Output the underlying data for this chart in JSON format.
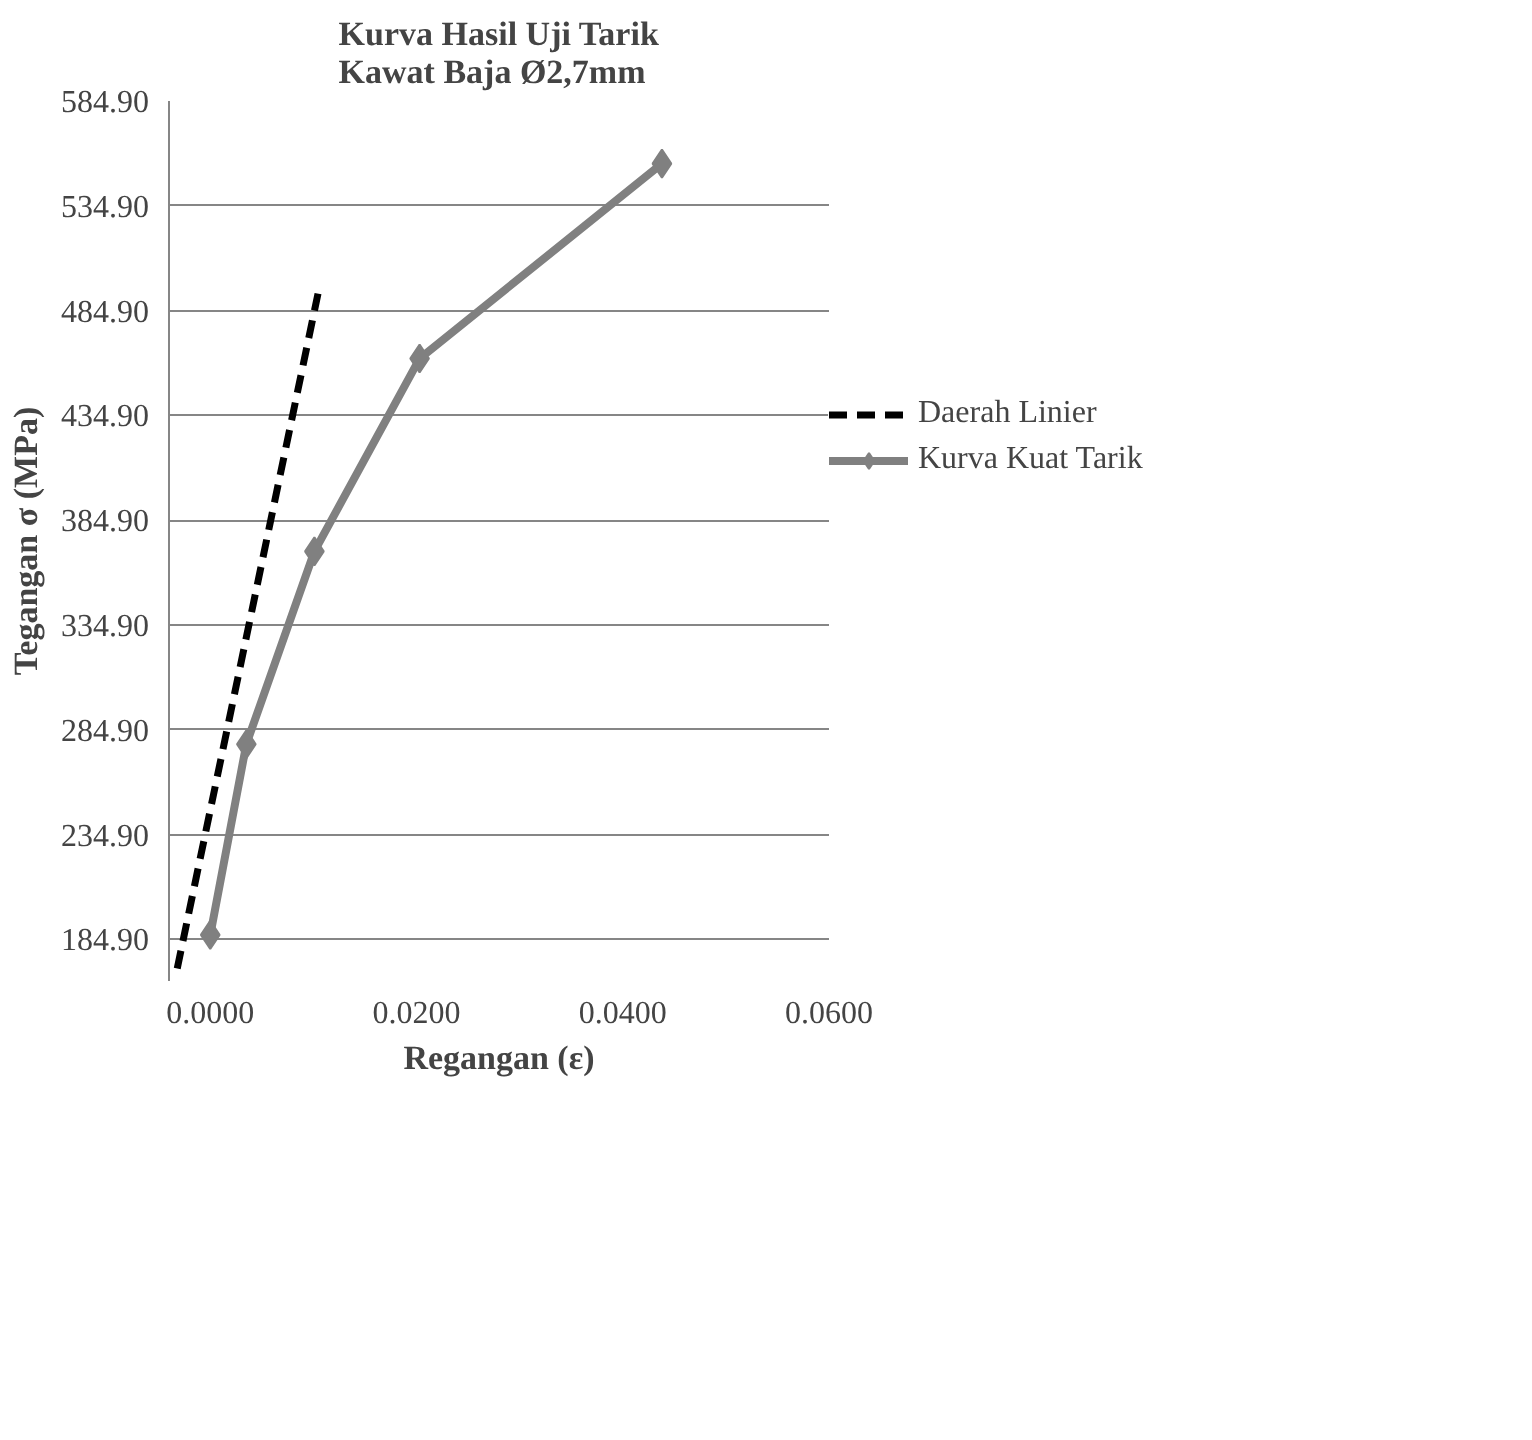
{
  "chart_data": {
    "type": "line",
    "title": "Kurva Hasil Uji Tarik\nKawat Baja Ø2,7mm",
    "xlabel": "Regangan (ε)",
    "ylabel": "Tegangan σ (MPa)",
    "series": [
      {
        "name": "Daerah Linier",
        "color": "#000000",
        "line_style": "dashed",
        "marker": "none",
        "x": [
          -0.0032,
          0.01045
        ],
        "values": [
          171,
          493
        ]
      },
      {
        "name": "Kurva Kuat Tarik",
        "color": "#808080",
        "line_style": "solid",
        "marker": "diamond",
        "x": [
          0.0,
          0.0035,
          0.0101,
          0.0203,
          0.0438
        ],
        "values": [
          187,
          278,
          370,
          462,
          555
        ]
      }
    ],
    "xlim": [
      -0.004,
      0.06
    ],
    "ylim": [
      165,
      584.9
    ],
    "xticks": [
      {
        "value": 0,
        "label": "0.0000"
      },
      {
        "value": 0.02,
        "label": "0.0200"
      },
      {
        "value": 0.04,
        "label": "0.0400"
      },
      {
        "value": 0.06,
        "label": "0.0600"
      }
    ],
    "yticks": [
      {
        "value": 184.9,
        "label": "184.90"
      },
      {
        "value": 234.9,
        "label": "234.90"
      },
      {
        "value": 284.9,
        "label": "284.90"
      },
      {
        "value": 334.9,
        "label": "334.90"
      },
      {
        "value": 384.9,
        "label": "384.90"
      },
      {
        "value": 434.9,
        "label": "434.90"
      },
      {
        "value": 484.9,
        "label": "484.90"
      },
      {
        "value": 534.9,
        "label": "534.90"
      },
      {
        "value": 584.9,
        "label": "584.90"
      }
    ],
    "grid": "y",
    "legend": "right"
  }
}
